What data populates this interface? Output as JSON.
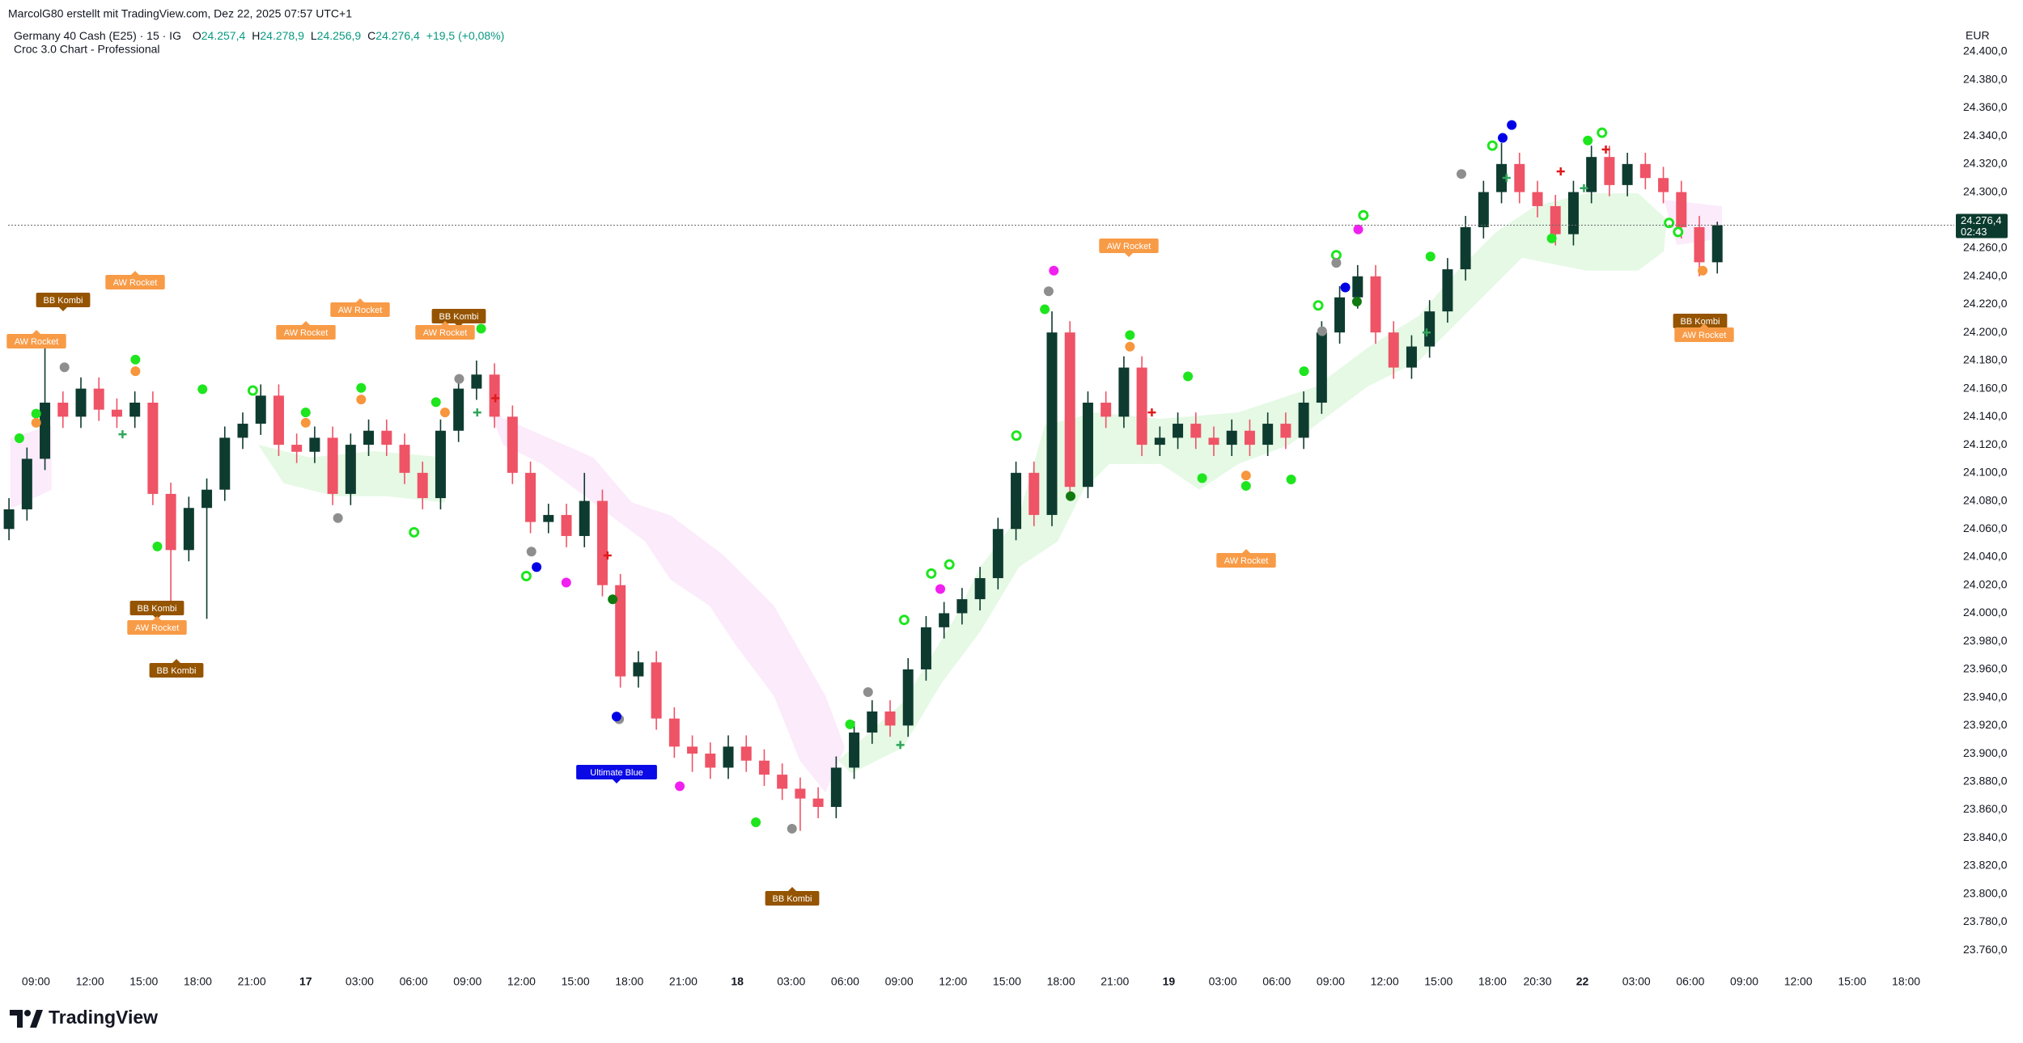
{
  "chart_data": {
    "type": "candlestick",
    "header": "MarcolG80 erstellt mit TradingView.com, Dez 22, 2025 07:57 UTC+1",
    "title": "Germany 40 Cash (E25) · 15 · IG",
    "ohlc": [
      {
        "key": "O",
        "value": "24.257,4"
      },
      {
        "key": "H",
        "value": "24.278,9"
      },
      {
        "key": "L",
        "value": "24.256,9"
      },
      {
        "key": "C",
        "value": "24.276,4"
      }
    ],
    "change": "+19,5 (+0,08%)",
    "subtitle": "Croc 3.0 Chart - Professional",
    "currency": "EUR",
    "last_price_label": "24.276,4",
    "countdown": "02:43",
    "brand": "TradingView",
    "up_color": "#0e3b2f",
    "down_color": "#ef5366",
    "grid": false,
    "signals": [
      "BB Kombi",
      "AW Rocket",
      "AW Rocket",
      "AW Rocket",
      "AW Rocket",
      "BB Kombi",
      "AW Rocket",
      "BB Kombi",
      "AW Rocket",
      "BB Kombi",
      "Ultimate Blue",
      "BB Kombi",
      "AW Rocket",
      "AW Rocket",
      "BB Kombi",
      "AW Rocket"
    ],
    "x": [
      -1.5,
      -0.5,
      0.5,
      1.5,
      2.5,
      3.5,
      4.5,
      5.5,
      6.5,
      7.5,
      8.5,
      9.5,
      10.5,
      11.5,
      12.5,
      13.5,
      14.5,
      15.5,
      16.5,
      17.5,
      18.5,
      19.5,
      20.5,
      21.5,
      22.5,
      23.5,
      24.5,
      25.5,
      26.5,
      27.5,
      28.5,
      29.5,
      30.5,
      31.5,
      32.5,
      33.5,
      34.5,
      35.5,
      36.5,
      37.5,
      38.5,
      39.5,
      40.5,
      41.5,
      42.5,
      43.5,
      44.5,
      45.5,
      46.5,
      47.5,
      48.5,
      49.5,
      50.5,
      51.5,
      52.5,
      53.5,
      54.5,
      55.5,
      56.5,
      57.5,
      58.5,
      59.5,
      60.5,
      61.5,
      62.5,
      63.5,
      64.5,
      65.5,
      66.5,
      67.5,
      68.5,
      69.5,
      70.5,
      71.5,
      72.5,
      73.5,
      74.5,
      75.5,
      76.5,
      77.5,
      78.5,
      79.5,
      80.5,
      81.5,
      82.5,
      83.5,
      84.5,
      85.5,
      86.5,
      87.5,
      88.5,
      89.5,
      90.5,
      91.5,
      92.5,
      93.5
    ],
    "open": [
      24060,
      24074,
      24110,
      24150,
      24140,
      24160,
      24145,
      24140,
      24150,
      24085,
      24045,
      24075,
      24088,
      24125,
      24135,
      24155,
      24120,
      24115,
      24125,
      24085,
      24120,
      24130,
      24120,
      24100,
      24082,
      24130,
      24160,
      24170,
      24140,
      24100,
      24065,
      24070,
      24055,
      24080,
      24020,
      23955,
      23965,
      23925,
      23905,
      23900,
      23890,
      23905,
      23895,
      23885,
      23875,
      23868,
      23862,
      23890,
      23915,
      23930,
      23920,
      23960,
      23990,
      24000,
      24010,
      24025,
      24060,
      24100,
      24070,
      24200,
      24090,
      24150,
      24140,
      24175,
      24120,
      24125,
      24135,
      24125,
      24120,
      24130,
      24120,
      24135,
      24125,
      24150,
      24200,
      24225,
      24240,
      24200,
      24175,
      24190,
      24215,
      24245,
      24275,
      24300,
      24320,
      24300,
      24290,
      24270,
      24300,
      24325,
      24305,
      24320,
      24310,
      24300,
      24275,
      24250
    ],
    "high": [
      24082,
      24118,
      24194,
      24158,
      24168,
      24168,
      24153,
      24158,
      24158,
      24093,
      24083,
      24096,
      24133,
      24143,
      24163,
      24163,
      24128,
      24133,
      24133,
      24128,
      24138,
      24138,
      24128,
      24108,
      24138,
      24168,
      24180,
      24178,
      24148,
      24108,
      24078,
      24078,
      24100,
      24088,
      24028,
      23973,
      23973,
      23933,
      23913,
      23908,
      23913,
      23913,
      23903,
      23893,
      23883,
      23876,
      23898,
      23923,
      23938,
      23938,
      23968,
      23998,
      24008,
      24018,
      24033,
      24068,
      24108,
      24108,
      24215,
      24208,
      24158,
      24158,
      24183,
      24183,
      24133,
      24143,
      24143,
      24133,
      24138,
      24138,
      24143,
      24143,
      24158,
      24208,
      24233,
      24248,
      24248,
      24208,
      24198,
      24223,
      24253,
      24283,
      24308,
      24335,
      24328,
      24308,
      24298,
      24308,
      24333,
      24333,
      24328,
      24328,
      24318,
      24308,
      24283,
      24278.9
    ],
    "low": [
      24052,
      24066,
      24102,
      24132,
      24132,
      24137,
      24132,
      24132,
      24077,
      24005,
      24037,
      23996,
      24080,
      24117,
      24127,
      24112,
      24107,
      24107,
      24077,
      24077,
      24112,
      24112,
      24092,
      24074,
      24074,
      24122,
      24152,
      24132,
      24092,
      24057,
      24057,
      24047,
      24047,
      24012,
      23947,
      23947,
      23917,
      23897,
      23887,
      23882,
      23882,
      23887,
      23877,
      23867,
      23845,
      23854,
      23854,
      23882,
      23907,
      23912,
      23912,
      23952,
      23982,
      23992,
      24002,
      24017,
      24052,
      24062,
      24062,
      24082,
      24082,
      24132,
      24132,
      24112,
      24112,
      24117,
      24117,
      24112,
      24112,
      24112,
      24112,
      24117,
      24117,
      24142,
      24192,
      24217,
      24192,
      24167,
      24167,
      24182,
      24207,
      24237,
      24267,
      24292,
      24292,
      24282,
      24262,
      24262,
      24292,
      24297,
      24297,
      24302,
      24292,
      24267,
      24240,
      24242
    ],
    "close": [
      24074,
      24110,
      24150,
      24140,
      24160,
      24145,
      24140,
      24150,
      24085,
      24045,
      24075,
      24088,
      24125,
      24135,
      24155,
      24120,
      24115,
      24125,
      24085,
      24120,
      24130,
      24120,
      24100,
      24082,
      24130,
      24160,
      24170,
      24140,
      24100,
      24065,
      24070,
      24055,
      24080,
      24020,
      23955,
      23965,
      23925,
      23905,
      23900,
      23890,
      23905,
      23895,
      23885,
      23875,
      23868,
      23862,
      23890,
      23915,
      23930,
      23920,
      23960,
      23990,
      24000,
      24010,
      24025,
      24060,
      24100,
      24070,
      24200,
      24090,
      24150,
      24140,
      24175,
      24120,
      24125,
      24135,
      24125,
      24120,
      24130,
      24120,
      24135,
      24125,
      24150,
      24200,
      24225,
      24240,
      24200,
      24175,
      24190,
      24215,
      24245,
      24275,
      24300,
      24320,
      24300,
      24290,
      24270,
      24300,
      24325,
      24305,
      24320,
      24310,
      24300,
      24275,
      24250,
      24276.4
    ],
    "xlim": [
      -2,
      106
    ],
    "xticks": [
      {
        "value": 0,
        "label": "09:00"
      },
      {
        "value": 3,
        "label": "12:00"
      },
      {
        "value": 6,
        "label": "15:00"
      },
      {
        "value": 9,
        "label": "18:00"
      },
      {
        "value": 12,
        "label": "21:00"
      },
      {
        "value": 15,
        "label": "17"
      },
      {
        "value": 18,
        "label": "03:00"
      },
      {
        "value": 21,
        "label": "06:00"
      },
      {
        "value": 24,
        "label": "09:00"
      },
      {
        "value": 27,
        "label": "12:00"
      },
      {
        "value": 30,
        "label": "15:00"
      },
      {
        "value": 33,
        "label": "18:00"
      },
      {
        "value": 36,
        "label": "21:00"
      },
      {
        "value": 39,
        "label": "18"
      },
      {
        "value": 42,
        "label": "03:00"
      },
      {
        "value": 45,
        "label": "06:00"
      },
      {
        "value": 48,
        "label": "09:00"
      },
      {
        "value": 51,
        "label": "12:00"
      },
      {
        "value": 54,
        "label": "15:00"
      },
      {
        "value": 57,
        "label": "18:00"
      },
      {
        "value": 60,
        "label": "21:00"
      },
      {
        "value": 63,
        "label": "19"
      },
      {
        "value": 66,
        "label": "03:00"
      },
      {
        "value": 69,
        "label": "06:00"
      },
      {
        "value": 72,
        "label": "09:00"
      },
      {
        "value": 75,
        "label": "12:00"
      },
      {
        "value": 78,
        "label": "15:00"
      },
      {
        "value": 81,
        "label": "18:00"
      },
      {
        "value": 83.5,
        "label": "20:30"
      },
      {
        "value": 86,
        "label": "22"
      },
      {
        "value": 89,
        "label": "03:00"
      },
      {
        "value": 92,
        "label": "06:00"
      },
      {
        "value": 95,
        "label": "09:00"
      },
      {
        "value": 98,
        "label": "12:00"
      },
      {
        "value": 101,
        "label": "15:00"
      },
      {
        "value": 104,
        "label": "18:00"
      }
    ],
    "ylim": [
      23748,
      24423
    ],
    "yticks": [
      {
        "value": 24400,
        "label": "24.400,0"
      },
      {
        "value": 24380,
        "label": "24.380,0"
      },
      {
        "value": 24360,
        "label": "24.360,0"
      },
      {
        "value": 24340,
        "label": "24.340,0"
      },
      {
        "value": 24320,
        "label": "24.320,0"
      },
      {
        "value": 24300,
        "label": "24.300,0"
      },
      {
        "value": 24280,
        "label": "24.280,0"
      },
      {
        "value": 24260,
        "label": "24.260,0"
      },
      {
        "value": 24240,
        "label": "24.240,0"
      },
      {
        "value": 24220,
        "label": "24.220,0"
      },
      {
        "value": 24200,
        "label": "24.200,0"
      },
      {
        "value": 24180,
        "label": "24.180,0"
      },
      {
        "value": 24160,
        "label": "24.160,0"
      },
      {
        "value": 24140,
        "label": "24.140,0"
      },
      {
        "value": 24120,
        "label": "24.120,0"
      },
      {
        "value": 24100,
        "label": "24.100,0"
      },
      {
        "value": 24080,
        "label": "24.080,0"
      },
      {
        "value": 24060,
        "label": "24.060,0"
      },
      {
        "value": 24040,
        "label": "24.040,0"
      },
      {
        "value": 24020,
        "label": "24.020,0"
      },
      {
        "value": 24000,
        "label": "24.000,0"
      },
      {
        "value": 23980,
        "label": "23.980,0"
      },
      {
        "value": 23960,
        "label": "23.960,0"
      },
      {
        "value": 23940,
        "label": "23.940,0"
      },
      {
        "value": 23920,
        "label": "23.920,0"
      },
      {
        "value": 23900,
        "label": "23.900,0"
      },
      {
        "value": 23880,
        "label": "23.880,0"
      },
      {
        "value": 23860,
        "label": "23.860,0"
      },
      {
        "value": 23840,
        "label": "23.840,0"
      },
      {
        "value": 23820,
        "label": "23.820,0"
      },
      {
        "value": 23800,
        "label": "23.800,0"
      },
      {
        "value": 23780,
        "label": "23.780,0"
      },
      {
        "value": 23760,
        "label": "23.760,0"
      }
    ]
  }
}
